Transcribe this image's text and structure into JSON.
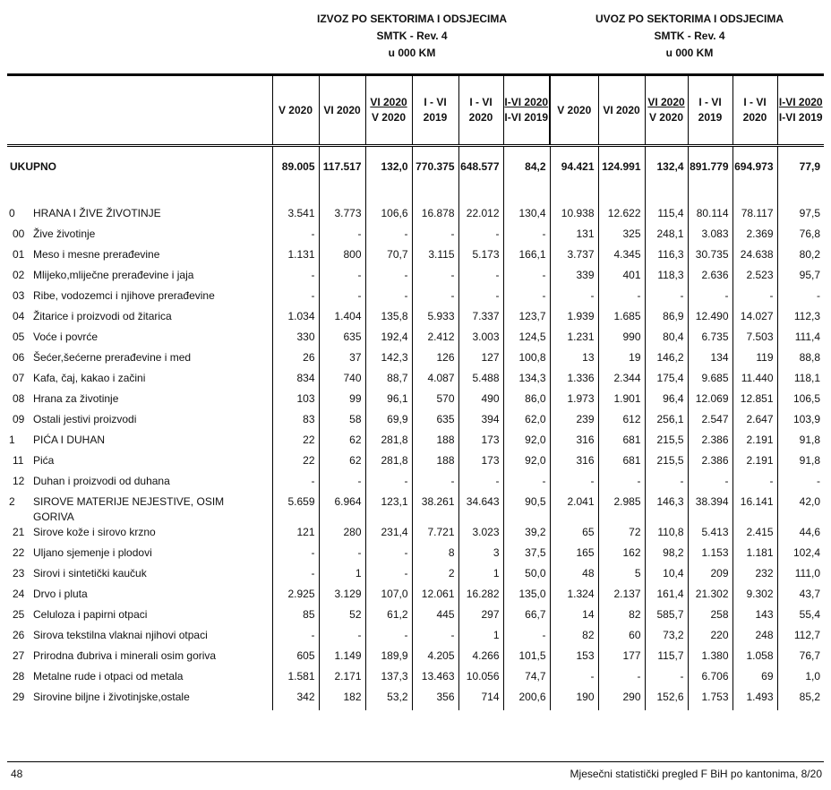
{
  "izvoz_title": [
    "IZVOZ PO SEKTORIMA I ODSJECIMA",
    "SMTK - Rev. 4",
    "u 000 KM"
  ],
  "uvoz_title": [
    "UVOZ PO SEKTORIMA I ODSJECIMA",
    "SMTK - Rev. 4",
    "u 000 KM"
  ],
  "columns": [
    {
      "top": "V 2020",
      "bottom": "",
      "ratio": false
    },
    {
      "top": "VI 2020",
      "bottom": "",
      "ratio": false
    },
    {
      "top": "VI 2020",
      "bottom": "V  2020",
      "ratio": true
    },
    {
      "top": "I - VI",
      "bottom": "2019",
      "ratio": false
    },
    {
      "top": "I - VI",
      "bottom": "2020",
      "ratio": false
    },
    {
      "top": "I-VI 2020",
      "bottom": "I-VI 2019",
      "ratio": true
    }
  ],
  "total": {
    "label": "UKUPNO",
    "izvoz": [
      "89.005",
      "117.517",
      "132,0",
      "770.375",
      "648.577",
      "84,2"
    ],
    "uvoz": [
      "94.421",
      "124.991",
      "132,4",
      "891.779",
      "694.973",
      "77,9"
    ]
  },
  "rows": [
    {
      "code": "0",
      "name": "HRANA I ŽIVE ŽIVOTINJE",
      "izvoz": [
        "3.541",
        "3.773",
        "106,6",
        "16.878",
        "22.012",
        "130,4"
      ],
      "uvoz": [
        "10.938",
        "12.622",
        "115,4",
        "80.114",
        "78.117",
        "97,5"
      ]
    },
    {
      "code": "00",
      "name": "Žive  životinje",
      "izvoz": [
        "-",
        "-",
        "-",
        "-",
        "-",
        "-"
      ],
      "uvoz": [
        "131",
        "325",
        "248,1",
        "3.083",
        "2.369",
        "76,8"
      ]
    },
    {
      "code": "01",
      "name": "Meso i mesne prerađevine",
      "izvoz": [
        "1.131",
        "800",
        "70,7",
        "3.115",
        "5.173",
        "166,1"
      ],
      "uvoz": [
        "3.737",
        "4.345",
        "116,3",
        "30.735",
        "24.638",
        "80,2"
      ]
    },
    {
      "code": "02",
      "name": "Mlijeko,mliječne prerađevine i jaja",
      "izvoz": [
        "-",
        "-",
        "-",
        "-",
        "-",
        "-"
      ],
      "uvoz": [
        "339",
        "401",
        "118,3",
        "2.636",
        "2.523",
        "95,7"
      ]
    },
    {
      "code": "03",
      "name": "Ribe, vodozemci i njihove prerađevine",
      "izvoz": [
        "-",
        "-",
        "-",
        "-",
        "-",
        "-"
      ],
      "uvoz": [
        "-",
        "-",
        "-",
        "-",
        "-",
        "-"
      ]
    },
    {
      "code": "04",
      "name": "Žitarice i proizvodi od žitarica",
      "izvoz": [
        "1.034",
        "1.404",
        "135,8",
        "5.933",
        "7.337",
        "123,7"
      ],
      "uvoz": [
        "1.939",
        "1.685",
        "86,9",
        "12.490",
        "14.027",
        "112,3"
      ]
    },
    {
      "code": "05",
      "name": "Voće i povrće",
      "izvoz": [
        "330",
        "635",
        "192,4",
        "2.412",
        "3.003",
        "124,5"
      ],
      "uvoz": [
        "1.231",
        "990",
        "80,4",
        "6.735",
        "7.503",
        "111,4"
      ]
    },
    {
      "code": "06",
      "name": "Šećer,šećerne prerađevine i med",
      "izvoz": [
        "26",
        "37",
        "142,3",
        "126",
        "127",
        "100,8"
      ],
      "uvoz": [
        "13",
        "19",
        "146,2",
        "134",
        "119",
        "88,8"
      ]
    },
    {
      "code": "07",
      "name": "Kafa, čaj, kakao i začini",
      "izvoz": [
        "834",
        "740",
        "88,7",
        "4.087",
        "5.488",
        "134,3"
      ],
      "uvoz": [
        "1.336",
        "2.344",
        "175,4",
        "9.685",
        "11.440",
        "118,1"
      ]
    },
    {
      "code": "08",
      "name": "Hrana za životinje",
      "izvoz": [
        "103",
        "99",
        "96,1",
        "570",
        "490",
        "86,0"
      ],
      "uvoz": [
        "1.973",
        "1.901",
        "96,4",
        "12.069",
        "12.851",
        "106,5"
      ]
    },
    {
      "code": "09",
      "name": "Ostali jestivi proizvodi",
      "izvoz": [
        "83",
        "58",
        "69,9",
        "635",
        "394",
        "62,0"
      ],
      "uvoz": [
        "239",
        "612",
        "256,1",
        "2.547",
        "2.647",
        "103,9"
      ]
    },
    {
      "code": "1",
      "name": "PIĆA I DUHAN",
      "izvoz": [
        "22",
        "62",
        "281,8",
        "188",
        "173",
        "92,0"
      ],
      "uvoz": [
        "316",
        "681",
        "215,5",
        "2.386",
        "2.191",
        "91,8"
      ]
    },
    {
      "code": "11",
      "name": "Pića",
      "izvoz": [
        "22",
        "62",
        "281,8",
        "188",
        "173",
        "92,0"
      ],
      "uvoz": [
        "316",
        "681",
        "215,5",
        "2.386",
        "2.191",
        "91,8"
      ]
    },
    {
      "code": "12",
      "name": "Duhan i proizvodi od duhana",
      "izvoz": [
        "-",
        "-",
        "-",
        "-",
        "-",
        "-"
      ],
      "uvoz": [
        "-",
        "-",
        "-",
        "-",
        "-",
        "-"
      ]
    },
    {
      "code": "2",
      "name": "SIROVE MATERIJE NEJESTIVE, OSIM GORIVA",
      "izvoz": [
        "5.659",
        "6.964",
        "123,1",
        "38.261",
        "34.643",
        "90,5"
      ],
      "uvoz": [
        "2.041",
        "2.985",
        "146,3",
        "38.394",
        "16.141",
        "42,0"
      ]
    },
    {
      "code": "21",
      "name": "Sirove kože i sirovo krzno",
      "izvoz": [
        "121",
        "280",
        "231,4",
        "7.721",
        "3.023",
        "39,2"
      ],
      "uvoz": [
        "65",
        "72",
        "110,8",
        "5.413",
        "2.415",
        "44,6"
      ]
    },
    {
      "code": "22",
      "name": "Uljano sjemenje i plodovi",
      "izvoz": [
        "-",
        "-",
        "-",
        "8",
        "3",
        "37,5"
      ],
      "uvoz": [
        "165",
        "162",
        "98,2",
        "1.153",
        "1.181",
        "102,4"
      ]
    },
    {
      "code": "23",
      "name": "Sirovi i sintetički kaučuk",
      "izvoz": [
        "-",
        "1",
        "-",
        "2",
        "1",
        "50,0"
      ],
      "uvoz": [
        "48",
        "5",
        "10,4",
        "209",
        "232",
        "111,0"
      ]
    },
    {
      "code": "24",
      "name": "Drvo i pluta",
      "izvoz": [
        "2.925",
        "3.129",
        "107,0",
        "12.061",
        "16.282",
        "135,0"
      ],
      "uvoz": [
        "1.324",
        "2.137",
        "161,4",
        "21.302",
        "9.302",
        "43,7"
      ]
    },
    {
      "code": "25",
      "name": "Celuloza i papirni otpaci",
      "izvoz": [
        "85",
        "52",
        "61,2",
        "445",
        "297",
        "66,7"
      ],
      "uvoz": [
        "14",
        "82",
        "585,7",
        "258",
        "143",
        "55,4"
      ]
    },
    {
      "code": "26",
      "name": "Sirova tekstilna vlaknai njihovi otpaci",
      "izvoz": [
        "-",
        "-",
        "-",
        "-",
        "1",
        "-"
      ],
      "uvoz": [
        "82",
        "60",
        "73,2",
        "220",
        "248",
        "112,7"
      ]
    },
    {
      "code": "27",
      "name": "Prirodna đubriva i minerali osim goriva",
      "izvoz": [
        "605",
        "1.149",
        "189,9",
        "4.205",
        "4.266",
        "101,5"
      ],
      "uvoz": [
        "153",
        "177",
        "115,7",
        "1.380",
        "1.058",
        "76,7"
      ]
    },
    {
      "code": "28",
      "name": "Metalne rude i otpaci od metala",
      "izvoz": [
        "1.581",
        "2.171",
        "137,3",
        "13.463",
        "10.056",
        "74,7"
      ],
      "uvoz": [
        "-",
        "-",
        "-",
        "6.706",
        "69",
        "1,0"
      ]
    },
    {
      "code": "29",
      "name": "Sirovine biljne i životinjske,ostale",
      "izvoz": [
        "342",
        "182",
        "53,2",
        "356",
        "714",
        "200,6"
      ],
      "uvoz": [
        "190",
        "290",
        "152,6",
        "1.753",
        "1.493",
        "85,2"
      ]
    }
  ],
  "footer": {
    "page": "48",
    "source": "Mjesečni statistički pregled F BiH po kantonima, 8/20"
  }
}
